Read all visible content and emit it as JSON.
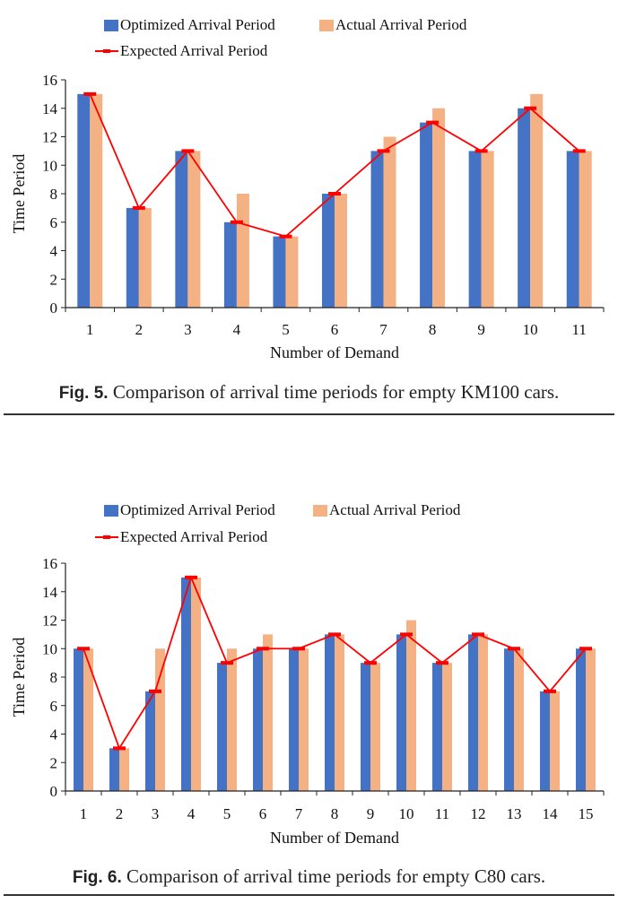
{
  "chart_data": [
    {
      "type": "bar",
      "categories": [
        "1",
        "2",
        "3",
        "4",
        "5",
        "6",
        "7",
        "8",
        "9",
        "10",
        "11"
      ],
      "series": [
        {
          "name": "Optimized Arrival Period",
          "type": "bar",
          "color": "#4472c4",
          "values": [
            15,
            7,
            11,
            6,
            5,
            8,
            11,
            13,
            11,
            14,
            11
          ]
        },
        {
          "name": "Actual Arrival Period",
          "type": "bar",
          "color": "#f4b183",
          "values": [
            15,
            7,
            11,
            8,
            5,
            8,
            12,
            14,
            11,
            15,
            11
          ]
        },
        {
          "name": "Expected Arrival Period",
          "type": "line",
          "color": "#ff0000",
          "values": [
            15,
            7,
            11,
            6,
            5,
            8,
            11,
            13,
            11,
            14,
            11
          ]
        }
      ],
      "xlabel": "Number of Demand",
      "ylabel": "Time Period",
      "ylim": [
        0,
        16
      ],
      "yticks": [
        "0",
        "2",
        "4",
        "6",
        "8",
        "10",
        "12",
        "14",
        "16"
      ],
      "grid": false,
      "legend_position": "top"
    },
    {
      "type": "bar",
      "categories": [
        "1",
        "2",
        "3",
        "4",
        "5",
        "6",
        "7",
        "8",
        "9",
        "10",
        "11",
        "12",
        "13",
        "14",
        "15"
      ],
      "series": [
        {
          "name": "Optimized Arrival Period",
          "type": "bar",
          "color": "#4472c4",
          "values": [
            10,
            3,
            7,
            15,
            9,
            10,
            10,
            11,
            9,
            11,
            9,
            11,
            10,
            7,
            10
          ]
        },
        {
          "name": "Actual Arrival Period",
          "type": "bar",
          "color": "#f4b183",
          "values": [
            10,
            3,
            10,
            15,
            10,
            11,
            10,
            11,
            9,
            12,
            9,
            11,
            10,
            7,
            10
          ]
        },
        {
          "name": "Expected Arrival Period",
          "type": "line",
          "color": "#ff0000",
          "values": [
            10,
            3,
            7,
            15,
            9,
            10,
            10,
            11,
            9,
            11,
            9,
            11,
            10,
            7,
            10
          ]
        }
      ],
      "xlabel": "Number of Demand",
      "ylabel": "Time Period",
      "ylim": [
        0,
        16
      ],
      "yticks": [
        "0",
        "2",
        "4",
        "6",
        "8",
        "10",
        "12",
        "14",
        "16"
      ],
      "grid": false,
      "legend_position": "top"
    }
  ],
  "captions": [
    {
      "figno": "Fig. 5.",
      "text": " Comparison of arrival time periods for empty KM100 cars."
    },
    {
      "figno": "Fig. 6.",
      "text": " Comparison of arrival time periods for empty C80 cars."
    }
  ]
}
